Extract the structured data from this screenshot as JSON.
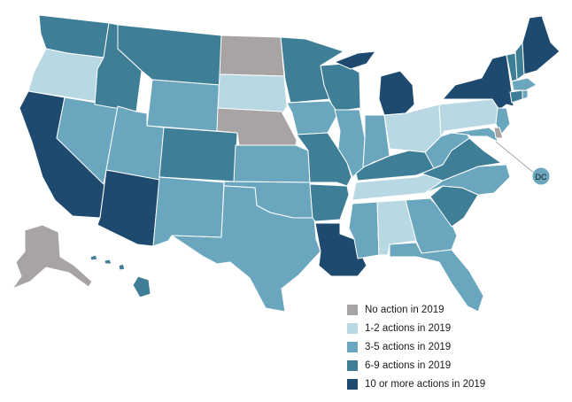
{
  "categories": {
    "none": {
      "label": "No action in 2019",
      "color": "#a8a4a4"
    },
    "c12": {
      "label": "1-2 actions in 2019",
      "color": "#b8d9e4"
    },
    "c35": {
      "label": "3-5 actions in 2019",
      "color": "#6aa7bf"
    },
    "c69": {
      "label": "6-9 actions in 2019",
      "color": "#3f7e97"
    },
    "c10": {
      "label": "10 or more actions in 2019",
      "color": "#1d4a6e"
    }
  },
  "legend_order": [
    "none",
    "c12",
    "c35",
    "c69",
    "c10"
  ],
  "dc_label": "DC",
  "states": {
    "WA": "c69",
    "OR": "c12",
    "CA": "c10",
    "NV": "c35",
    "ID": "c69",
    "MT": "c69",
    "WY": "c35",
    "UT": "c35",
    "AZ": "c10",
    "CO": "c69",
    "NM": "c35",
    "ND": "none",
    "SD": "c12",
    "NE": "none",
    "KS": "c35",
    "OK": "c35",
    "TX": "c35",
    "MN": "c69",
    "IA": "c35",
    "MO": "c69",
    "AR": "c69",
    "LA": "c10",
    "WI": "c69",
    "IL": "c35",
    "MI": "c10",
    "IN": "c35",
    "OH": "c12",
    "KY": "c69",
    "TN": "c12",
    "MS": "c35",
    "AL": "c12",
    "GA": "c35",
    "FL": "c35",
    "SC": "c69",
    "NC": "c35",
    "VA": "c69",
    "WV": "c35",
    "PA": "c12",
    "NY": "c10",
    "VT": "c69",
    "NH": "c69",
    "ME": "c10",
    "MA": "c35",
    "RI": "c35",
    "CT": "c69",
    "NJ": "c35",
    "DE": "none",
    "MD": "c35",
    "AK": "none",
    "HI": "c69",
    "DC": "c35"
  }
}
